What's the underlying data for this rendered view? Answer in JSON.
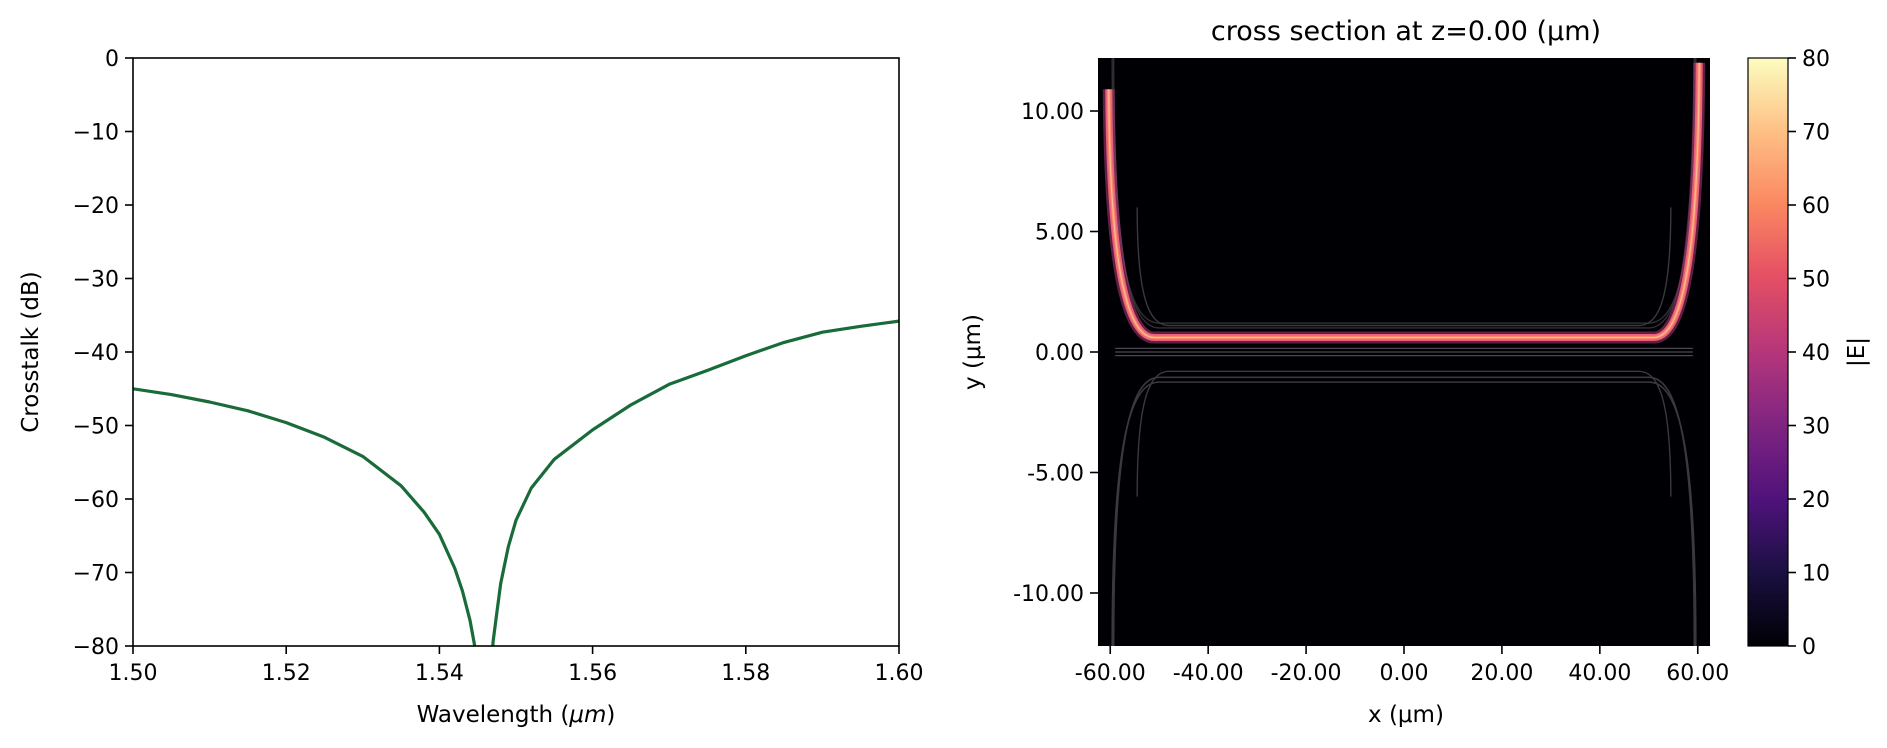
{
  "chart_data": [
    {
      "type": "line",
      "title": "",
      "xlabel": "Wavelength (",
      "xlabel_unit": "μm",
      "xlabel_close": ")",
      "ylabel": "Crosstalk (dB)",
      "xlim": [
        1.5,
        1.6
      ],
      "ylim": [
        -80,
        0
      ],
      "xticks": [
        "1.50",
        "1.52",
        "1.54",
        "1.56",
        "1.58",
        "1.60"
      ],
      "xtick_values": [
        1.5,
        1.52,
        1.54,
        1.56,
        1.58,
        1.6
      ],
      "yticks": [
        "0",
        "−10",
        "−20",
        "−30",
        "−40",
        "−50",
        "−60",
        "−70",
        "−80"
      ],
      "ytick_values": [
        0,
        -10,
        -20,
        -30,
        -40,
        -50,
        -60,
        -70,
        -80
      ],
      "grid": false,
      "series": [
        {
          "color": "#1a6b3a",
          "x": [
            1.5,
            1.505,
            1.51,
            1.515,
            1.52,
            1.525,
            1.53,
            1.535,
            1.538,
            1.54,
            1.542,
            1.543,
            1.544,
            1.5447,
            1.5452,
            1.5455
          ],
          "y": [
            -45.0,
            -45.8,
            -46.8,
            -48.0,
            -49.6,
            -51.6,
            -54.2,
            -58.2,
            -61.8,
            -64.8,
            -69.4,
            -72.5,
            -76.5,
            -80.5,
            -84,
            -88
          ]
        },
        {
          "color": "#1a6b3a",
          "x": [
            1.5465,
            1.5468,
            1.547,
            1.5475,
            1.548,
            1.549,
            1.55,
            1.552,
            1.555,
            1.56,
            1.565,
            1.57,
            1.575,
            1.58,
            1.585,
            1.59,
            1.595,
            1.6
          ],
          "y": [
            -88,
            -84,
            -79.5,
            -75.4,
            -71.5,
            -66.5,
            -62.9,
            -58.5,
            -54.6,
            -50.6,
            -47.2,
            -44.4,
            -42.5,
            -40.5,
            -38.7,
            -37.3,
            -36.5,
            -35.8
          ]
        }
      ]
    },
    {
      "type": "heatmap",
      "title": "cross section at z=0.00 (μm)",
      "xlabel": "x (μm)",
      "ylabel": "y (μm)",
      "xlim": [
        -62.5,
        62.5
      ],
      "ylim": [
        -12.2,
        12.2
      ],
      "xticks": [
        "-60.00",
        "-40.00",
        "-20.00",
        "0.00",
        "20.00",
        "40.00",
        "60.00"
      ],
      "xtick_values": [
        -60,
        -40,
        -20,
        0,
        20,
        40,
        60
      ],
      "yticks": [
        "10.00",
        "5.00",
        "0.00",
        "-5.00",
        "-10.00"
      ],
      "ytick_values": [
        10,
        5,
        0,
        -5,
        -10
      ],
      "colormap": "magma",
      "colorbar": {
        "label": "|E|",
        "range": [
          0,
          80
        ],
        "ticks": [
          "80",
          "70",
          "60",
          "50",
          "40",
          "30",
          "20",
          "10",
          "0"
        ],
        "tick_values": [
          80,
          70,
          60,
          50,
          40,
          30,
          20,
          10,
          0
        ]
      },
      "waveguides": {
        "upper_field": {
          "x_range": [
            -51,
            51
          ],
          "y": 0.6,
          "bend_top_left": 10.9,
          "bend_top_right": 12.0,
          "peak_value": 60,
          "color": "#f8876a"
        },
        "inner_guides_upper": {
          "y": 1.0,
          "bend_top": 6.0
        },
        "center_guide": {
          "y": 0.0,
          "x_range": [
            -59,
            59
          ]
        },
        "inner_guides_lower": {
          "y": -0.8,
          "bend_bottom": -6.0
        },
        "outer_guides_lower": {
          "y": -1.2,
          "bend_bottom": -12.2
        }
      }
    }
  ]
}
